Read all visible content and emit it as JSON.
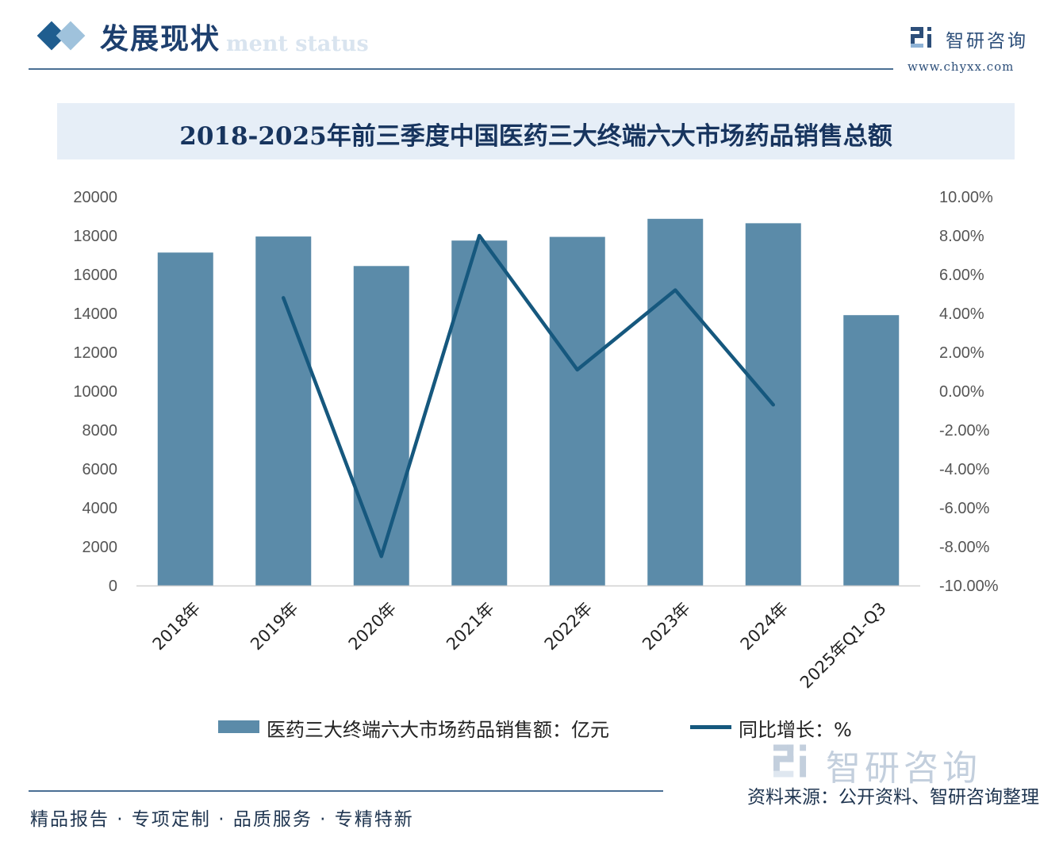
{
  "header": {
    "section_title": "发展现状",
    "section_ghost": "ment status",
    "brand_name": "智研咨询",
    "brand_url": "www.chyxx.com"
  },
  "chart_data": {
    "type": "bar",
    "title": "2018-2025年前三季度中国医药三大终端六大市场药品销售总额",
    "categories": [
      "2018年",
      "2019年",
      "2020年",
      "2021年",
      "2022年",
      "2023年",
      "2024年",
      "2025年Q1-Q3"
    ],
    "series": [
      {
        "name": "医药三大终端六大市场药品销售额：亿元",
        "type": "bar",
        "axis": "left",
        "values": [
          17130,
          17955,
          16437,
          17747,
          17936,
          18865,
          18638,
          13910
        ]
      },
      {
        "name": "同比增长：%",
        "type": "line",
        "axis": "right",
        "values": [
          null,
          4.8,
          -8.5,
          8.0,
          1.1,
          5.2,
          -0.7,
          null
        ]
      }
    ],
    "ylim": [
      0,
      20000
    ],
    "y_ticks": [
      "20000",
      "18000",
      "16000",
      "14000",
      "12000",
      "10000",
      "8000",
      "6000",
      "4000",
      "2000",
      "0"
    ],
    "y2lim": [
      -10,
      10
    ],
    "y2_ticks": [
      "10.00%",
      "8.00%",
      "6.00%",
      "4.00%",
      "2.00%",
      "0.00%",
      "-2.00%",
      "-4.00%",
      "-6.00%",
      "-8.00%",
      "-10.00%"
    ],
    "grid": false,
    "legend_position": "bottom",
    "colors": {
      "bar": "#5b8ba9",
      "line": "#16587e"
    }
  },
  "footer": {
    "brand_name": "智研咨询",
    "source": "资料来源：公开资料、智研咨询整理",
    "tagline": "精品报告 · 专项定制 · 品质服务 · 专精特新"
  }
}
